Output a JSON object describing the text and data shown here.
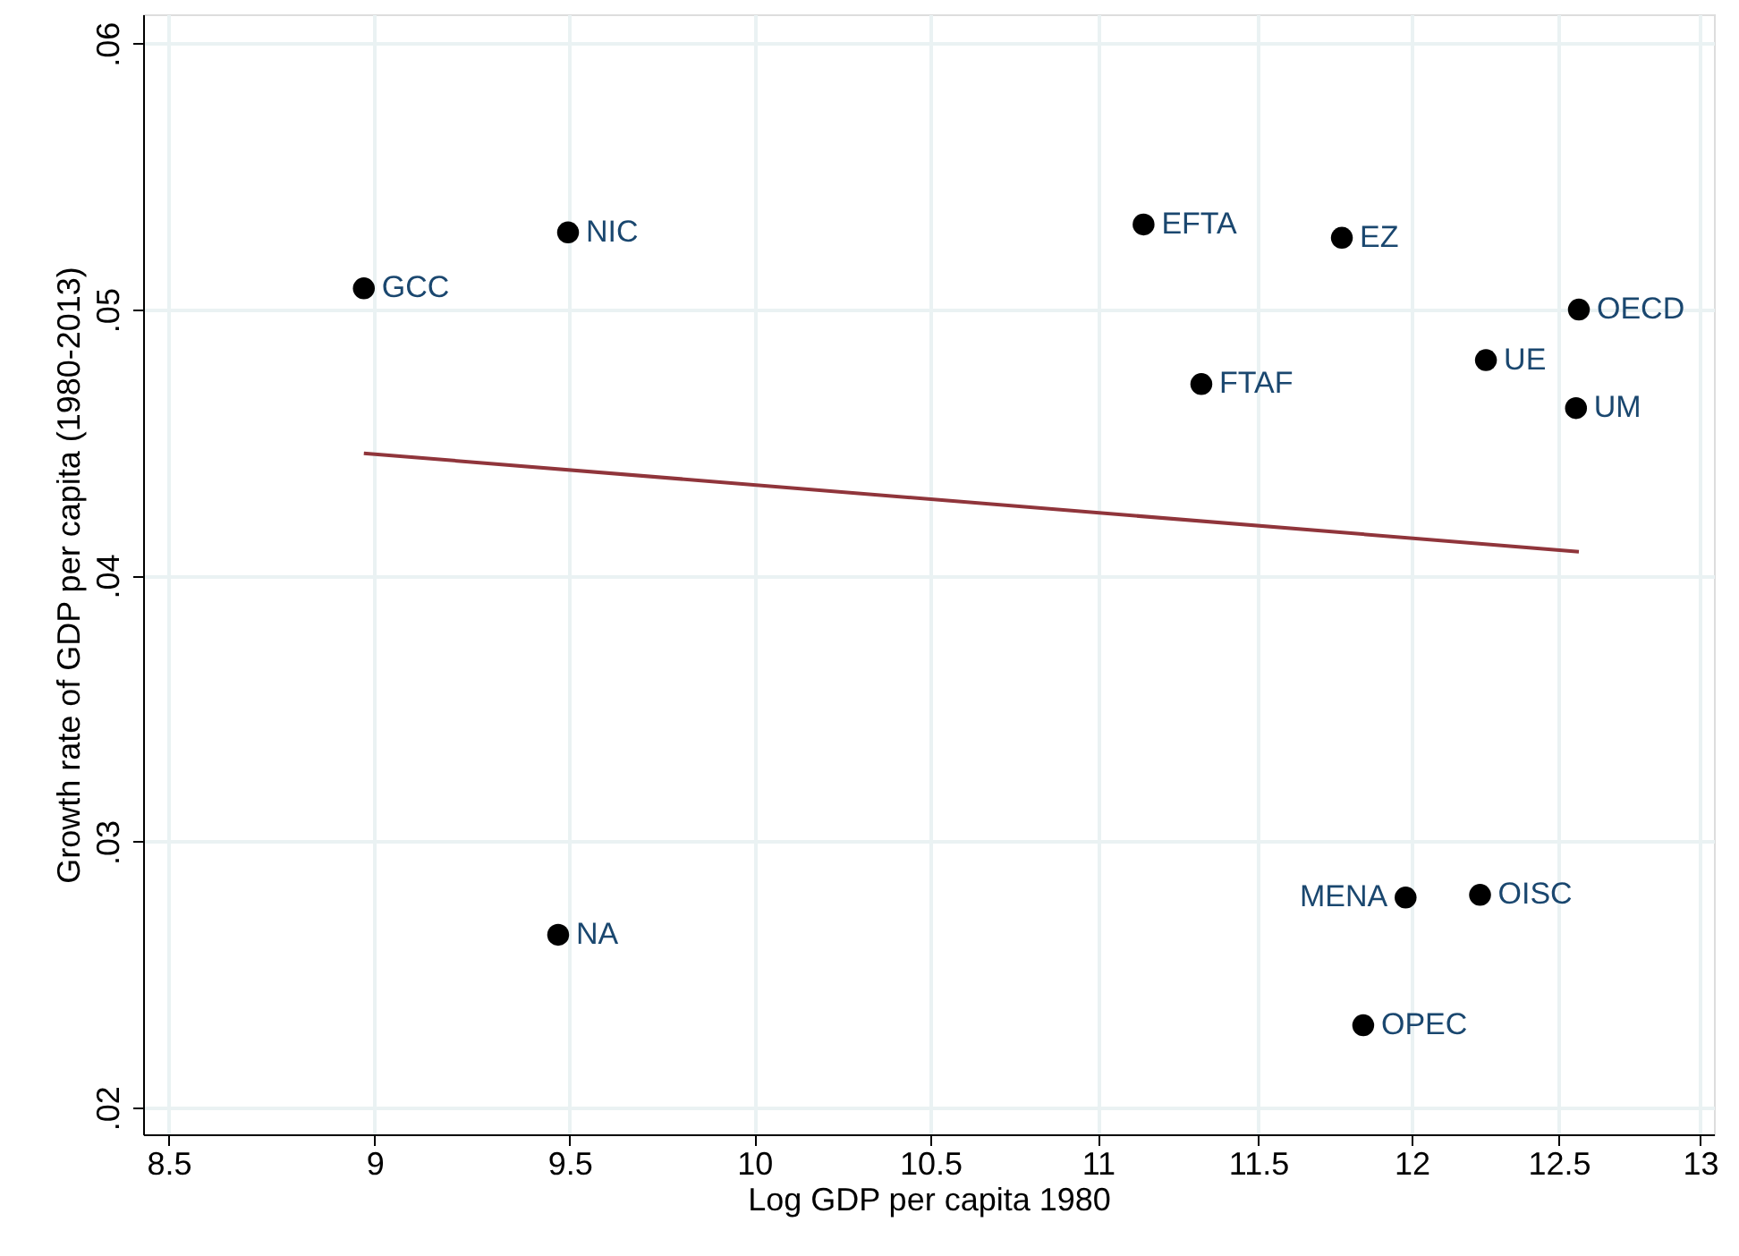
{
  "chart_data": {
    "type": "scatter",
    "xlabel": "Log GDP per capita 1980",
    "ylabel": "Growth rate of GDP per capita (1980-2013)",
    "log": "x",
    "grid": true,
    "xlim": [
      8.44,
      13.05
    ],
    "xticks": [
      8.5,
      9,
      9.5,
      10,
      10.5,
      11,
      11.5,
      12,
      12.5,
      13
    ],
    "ylim": [
      0.019,
      0.0611
    ],
    "yticks": [
      {
        "value": 0.02,
        "label": ".02"
      },
      {
        "value": 0.03,
        "label": ".03"
      },
      {
        "value": 0.04,
        "label": ".04"
      },
      {
        "value": 0.05,
        "label": ".05"
      },
      {
        "value": 0.06,
        "label": ".06"
      }
    ],
    "series": [
      {
        "marker": "circle",
        "color": "#000000",
        "x": [
          8.973,
          9.496,
          11.14,
          11.77,
          11.32,
          12.25,
          12.57,
          12.56,
          9.47,
          11.98,
          12.23,
          11.84
        ],
        "values": [
          0.0508,
          0.0529,
          0.0532,
          0.0527,
          0.0472,
          0.0481,
          0.05,
          0.0463,
          0.0265,
          0.0279,
          0.028,
          0.0231
        ]
      },
      {
        "type": "line",
        "color": "#90353b",
        "x": [
          8.973,
          12.57
        ],
        "values": [
          0.0446,
          0.0409
        ]
      }
    ],
    "annotations": [
      {
        "text": "GCC",
        "x": 8.973,
        "y": 0.0508
      },
      {
        "text": "NIC",
        "x": 9.496,
        "y": 0.0529
      },
      {
        "text": "EFTA",
        "x": 11.14,
        "y": 0.0532
      },
      {
        "text": "EZ",
        "x": 11.77,
        "y": 0.0527
      },
      {
        "text": "FTAF",
        "x": 11.32,
        "y": 0.0472
      },
      {
        "text": "UE",
        "x": 12.25,
        "y": 0.0481
      },
      {
        "text": "OECD",
        "x": 12.57,
        "y": 0.05
      },
      {
        "text": "UM",
        "x": 12.56,
        "y": 0.0463
      },
      {
        "text": "NA",
        "x": 9.47,
        "y": 0.0265
      },
      {
        "text": "MENA",
        "x": 11.98,
        "y": 0.0279
      },
      {
        "text": "OISC",
        "x": 12.23,
        "y": 0.028
      },
      {
        "text": "OPEC",
        "x": 11.84,
        "y": 0.0231
      }
    ]
  }
}
